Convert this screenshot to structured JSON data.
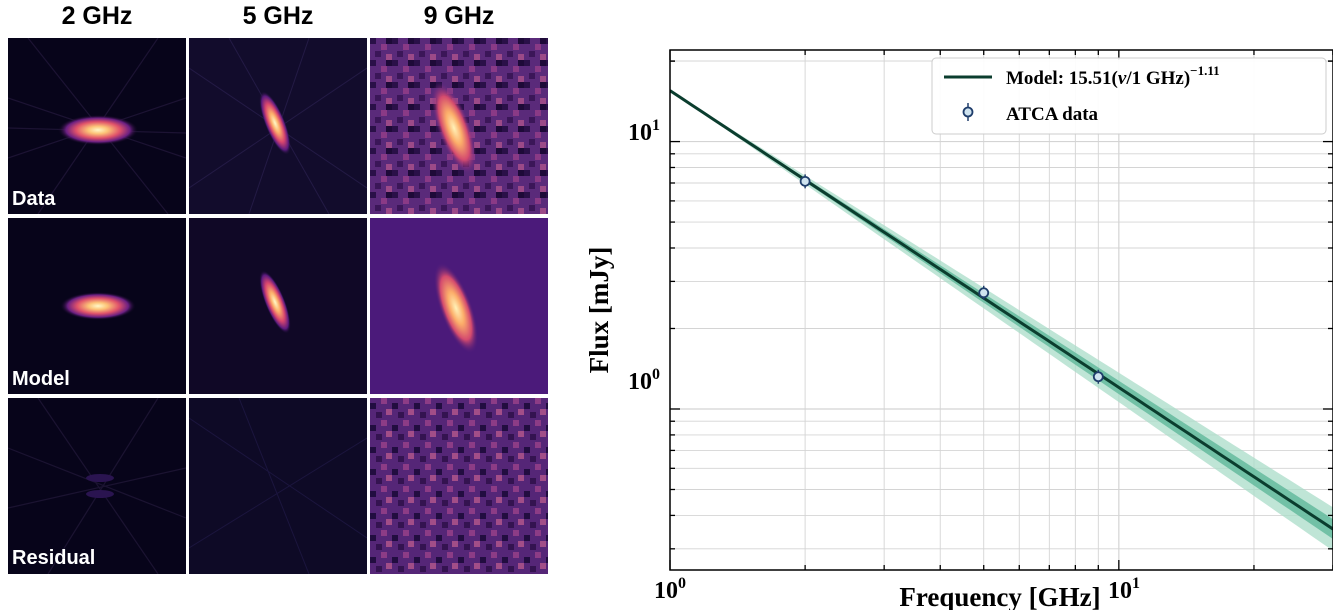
{
  "image_panels": {
    "column_titles": [
      "2 GHz",
      "5 GHz",
      "9 GHz"
    ],
    "row_labels": [
      "Data",
      "Model",
      "Residual"
    ]
  },
  "chart_data": {
    "type": "scatter",
    "xlabel": "Frequency [GHz]",
    "ylabel": "Flux [mJy]",
    "xscale": "log",
    "yscale": "log",
    "xlim": [
      1,
      30
    ],
    "ylim": [
      0.25,
      22
    ],
    "grid": true,
    "legend_placement": "top-right",
    "x_tick_labels": [
      {
        "value": 1,
        "base": "10",
        "exp": "0"
      },
      {
        "value": 10,
        "base": "10",
        "exp": "1"
      }
    ],
    "y_tick_labels": [
      {
        "value": 1,
        "base": "10",
        "exp": "0"
      },
      {
        "value": 10,
        "base": "10",
        "exp": "1"
      }
    ],
    "model": {
      "name_prefix": "Model: 15.51(",
      "name_nu": "ν",
      "name_mid": "/1 GHz)",
      "name_exp": "−1.11",
      "amplitude": 15.51,
      "index": -1.11,
      "inner_band_index": [
        -1.135,
        -1.085
      ],
      "outer_band_index": [
        -1.165,
        -1.055
      ],
      "color": "#0b3d2e",
      "band_inner_color": "#5fb89a",
      "band_outer_color": "#a9dcc8"
    },
    "series": [
      {
        "name": "ATCA data",
        "x": [
          2,
          5,
          9
        ],
        "y": [
          7.1,
          2.72,
          1.32
        ],
        "marker_edge": "#1f3d6b",
        "marker_face": "#cfe3ef"
      }
    ]
  }
}
